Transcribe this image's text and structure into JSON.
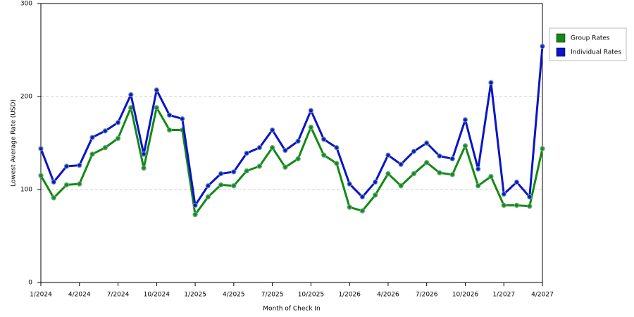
{
  "chart_data": {
    "type": "line",
    "x_label": "Month of Check In",
    "y_label": "Lowest Average Rate (USD)",
    "categories": [
      "1/2024",
      null,
      null,
      "4/2024",
      null,
      null,
      "7/2024",
      null,
      null,
      "10/2024",
      null,
      null,
      "1/2025",
      null,
      null,
      "4/2025",
      null,
      null,
      "7/2025",
      null,
      null,
      "10/2025",
      null,
      null,
      "1/2026",
      null,
      null,
      "4/2026",
      null,
      null,
      "7/2026",
      null,
      null,
      "10/2026",
      null,
      null,
      "1/2027",
      null,
      null,
      "4/2027"
    ],
    "series": [
      {
        "name": "Group Rates",
        "color": "#138a13",
        "values": [
          115,
          91,
          105,
          106,
          138,
          145,
          155,
          188,
          123,
          188,
          164,
          164,
          73,
          92,
          105,
          104,
          120,
          125,
          145,
          124,
          133,
          167,
          137,
          128,
          81,
          77,
          94,
          117,
          104,
          117,
          129,
          118,
          116,
          147,
          104,
          114,
          83,
          83,
          82,
          144
        ]
      },
      {
        "name": "Individual Rates",
        "color": "#0a14c8",
        "values": [
          144,
          108,
          125,
          126,
          156,
          163,
          172,
          202,
          138,
          207,
          180,
          176,
          83,
          104,
          117,
          119,
          139,
          145,
          164,
          142,
          152,
          185,
          154,
          145,
          106,
          92,
          108,
          137,
          127,
          141,
          150,
          136,
          133,
          175,
          122,
          215,
          95,
          108,
          92,
          254
        ]
      }
    ],
    "ylim": [
      0,
      300
    ],
    "yticks": [
      0,
      100,
      200,
      300
    ],
    "grid": true,
    "legend": "right"
  }
}
